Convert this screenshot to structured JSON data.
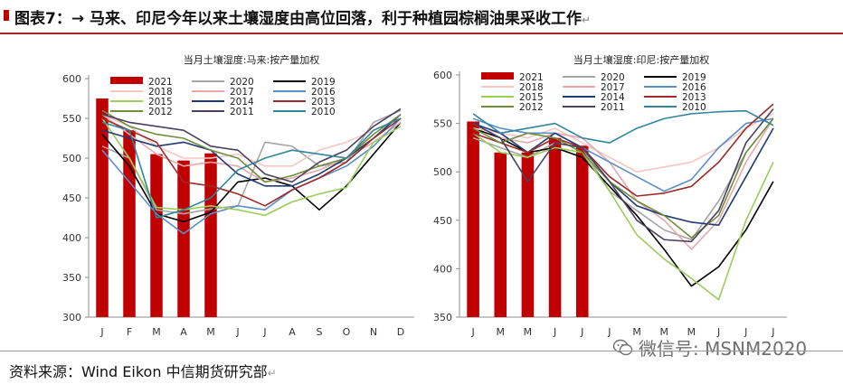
{
  "header": {
    "title": "图表7：→ 马来、印尼今年以来土壤湿度由高位回落，利于种植园棕榈油果采收工作",
    "return_mark": "↵"
  },
  "footer": {
    "source": "资料来源：Wind Eikon 中信期货研究部",
    "return_mark": "↵"
  },
  "watermark": {
    "text": "微信号: MSNM2020"
  },
  "chart_data": [
    {
      "type": "bar+line",
      "title": "当月土壤湿度:马来:按产量加权",
      "categories": [
        "J",
        "F",
        "M",
        "A",
        "M",
        "J",
        "J",
        "A",
        "S",
        "O",
        "N",
        "D"
      ],
      "ylim": [
        300,
        600
      ],
      "yticks": [
        300,
        350,
        400,
        450,
        500,
        550,
        600
      ],
      "grid": false,
      "legend_position": "top",
      "bar_series": {
        "name": "2021",
        "color": "#c00000",
        "values": [
          575,
          535,
          505,
          497,
          506
        ]
      },
      "series": [
        {
          "name": "2020",
          "color": "#a6a6a6",
          "values": [
            515,
            500,
            435,
            430,
            436,
            440,
            520,
            515,
            490,
            495,
            545,
            560
          ]
        },
        {
          "name": "2019",
          "color": "#000000",
          "values": [
            530,
            490,
            430,
            420,
            432,
            470,
            475,
            465,
            435,
            465,
            505,
            545
          ]
        },
        {
          "name": "2018",
          "color": "#f4c7c3",
          "values": [
            555,
            540,
            515,
            500,
            500,
            505,
            490,
            490,
            510,
            520,
            535,
            550
          ]
        },
        {
          "name": "2017",
          "color": "#e8a8ab",
          "values": [
            555,
            530,
            505,
            490,
            495,
            490,
            470,
            475,
            485,
            500,
            520,
            545
          ]
        },
        {
          "name": "2016",
          "color": "#5b8fc9",
          "values": [
            510,
            470,
            430,
            405,
            430,
            440,
            435,
            460,
            475,
            490,
            515,
            550
          ]
        },
        {
          "name": "2015",
          "color": "#9acd5a",
          "values": [
            550,
            500,
            438,
            435,
            440,
            435,
            428,
            445,
            455,
            463,
            520,
            540
          ]
        },
        {
          "name": "2014",
          "color": "#1f3b73",
          "values": [
            535,
            525,
            515,
            520,
            510,
            480,
            465,
            465,
            480,
            500,
            525,
            555
          ]
        },
        {
          "name": "2013",
          "color": "#9e2a2a",
          "values": [
            550,
            535,
            520,
            470,
            465,
            455,
            440,
            460,
            475,
            495,
            525,
            550
          ]
        },
        {
          "name": "2012",
          "color": "#6e8e3e",
          "values": [
            560,
            540,
            530,
            525,
            510,
            500,
            470,
            478,
            490,
            500,
            530,
            555
          ]
        },
        {
          "name": "2011",
          "color": "#4b4060",
          "values": [
            555,
            545,
            540,
            535,
            515,
            510,
            480,
            470,
            495,
            510,
            540,
            562
          ]
        },
        {
          "name": "2010",
          "color": "#31859c",
          "values": [
            545,
            535,
            425,
            435,
            450,
            485,
            500,
            510,
            505,
            500,
            535,
            550
          ]
        }
      ]
    },
    {
      "type": "bar+line",
      "title": "当月土壤湿度:印尼:按产量加权",
      "categories": [
        "J",
        "M",
        "M",
        "J",
        "J",
        "J",
        "M",
        "M",
        "M",
        "J",
        "J",
        "J"
      ],
      "ylim": [
        350,
        600
      ],
      "yticks": [
        350,
        400,
        450,
        500,
        550,
        600
      ],
      "grid": false,
      "legend_position": "top",
      "bar_series": {
        "name": "2021",
        "color": "#c00000",
        "values": [
          552,
          520,
          520,
          535,
          527
        ]
      },
      "series": [
        {
          "name": "2020",
          "color": "#a6a6a6",
          "values": [
            535,
            525,
            515,
            530,
            525,
            480,
            460,
            440,
            430,
            470,
            520,
            555
          ]
        },
        {
          "name": "2019",
          "color": "#000000",
          "values": [
            545,
            535,
            520,
            525,
            515,
            485,
            455,
            420,
            382,
            402,
            440,
            490
          ]
        },
        {
          "name": "2018",
          "color": "#f4c7c3",
          "values": [
            545,
            540,
            535,
            545,
            530,
            515,
            500,
            505,
            510,
            525,
            545,
            560
          ]
        },
        {
          "name": "2017",
          "color": "#e8a8ab",
          "values": [
            550,
            535,
            530,
            540,
            535,
            510,
            470,
            450,
            420,
            450,
            510,
            555
          ]
        },
        {
          "name": "2016",
          "color": "#5b8fc9",
          "values": [
            555,
            545,
            540,
            540,
            525,
            510,
            495,
            480,
            492,
            525,
            550,
            555
          ]
        },
        {
          "name": "2015",
          "color": "#9acd5a",
          "values": [
            540,
            520,
            515,
            525,
            520,
            480,
            435,
            410,
            390,
            368,
            450,
            510
          ]
        },
        {
          "name": "2014",
          "color": "#1f3b73",
          "values": [
            550,
            540,
            520,
            540,
            525,
            490,
            465,
            455,
            448,
            445,
            495,
            545
          ]
        },
        {
          "name": "2013",
          "color": "#9e2a2a",
          "values": [
            540,
            530,
            520,
            535,
            525,
            495,
            475,
            478,
            485,
            510,
            545,
            570
          ]
        },
        {
          "name": "2012",
          "color": "#6e8e3e",
          "values": [
            545,
            530,
            540,
            535,
            520,
            490,
            470,
            455,
            432,
            455,
            520,
            555
          ]
        },
        {
          "name": "2011",
          "color": "#4b4060",
          "values": [
            550,
            535,
            490,
            530,
            525,
            490,
            450,
            430,
            428,
            460,
            530,
            565
          ]
        },
        {
          "name": "2010",
          "color": "#31859c",
          "values": [
            560,
            540,
            545,
            550,
            535,
            530,
            545,
            555,
            560,
            562,
            563,
            548
          ]
        }
      ]
    }
  ]
}
